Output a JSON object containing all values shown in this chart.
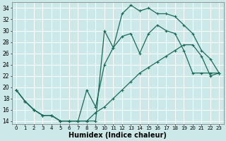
{
  "xlabel": "Humidex (Indice chaleur)",
  "background_color": "#cce8e8",
  "line_color": "#1a6b5a",
  "grid_color": "#ffffff",
  "xlim": [
    -0.5,
    23.5
  ],
  "ylim": [
    13.5,
    35
  ],
  "yticks": [
    14,
    16,
    18,
    20,
    22,
    24,
    26,
    28,
    30,
    32,
    34
  ],
  "xticks": [
    0,
    1,
    2,
    3,
    4,
    5,
    6,
    7,
    8,
    9,
    10,
    11,
    12,
    13,
    14,
    15,
    16,
    17,
    18,
    19,
    20,
    21,
    22,
    23
  ],
  "curve1_x": [
    0,
    1,
    2,
    3,
    4,
    5,
    6,
    7,
    8,
    9,
    10,
    11,
    12,
    13,
    14,
    15,
    16,
    17,
    18,
    19,
    20,
    21,
    22,
    23
  ],
  "curve1_y": [
    19.5,
    17.5,
    16.0,
    15.0,
    15.0,
    14.0,
    14.0,
    14.0,
    14.0,
    14.0,
    30.0,
    27.0,
    33.0,
    34.5,
    33.5,
    34.0,
    33.0,
    33.0,
    32.5,
    31.0,
    29.5,
    26.5,
    25.0,
    22.5
  ],
  "curve2_x": [
    0,
    1,
    2,
    3,
    4,
    5,
    6,
    7,
    8,
    9,
    10,
    11,
    12,
    13,
    14,
    15,
    16,
    17,
    18,
    19,
    20,
    21,
    22,
    23
  ],
  "curve2_y": [
    19.5,
    17.5,
    16.0,
    15.0,
    15.0,
    14.0,
    14.0,
    14.0,
    19.5,
    16.5,
    24.0,
    27.0,
    29.0,
    29.5,
    26.0,
    29.5,
    31.0,
    30.0,
    29.5,
    26.5,
    22.5,
    22.5,
    22.5,
    22.5
  ],
  "curve3_x": [
    0,
    1,
    2,
    3,
    4,
    5,
    6,
    7,
    8,
    9,
    10,
    11,
    12,
    13,
    14,
    15,
    16,
    17,
    18,
    19,
    20,
    21,
    22,
    23
  ],
  "curve3_y": [
    19.5,
    17.5,
    16.0,
    15.0,
    15.0,
    14.0,
    14.0,
    14.0,
    14.0,
    15.5,
    16.5,
    18.0,
    19.5,
    21.0,
    22.5,
    23.5,
    24.5,
    25.5,
    26.5,
    27.5,
    27.5,
    25.5,
    22.0,
    22.5
  ]
}
